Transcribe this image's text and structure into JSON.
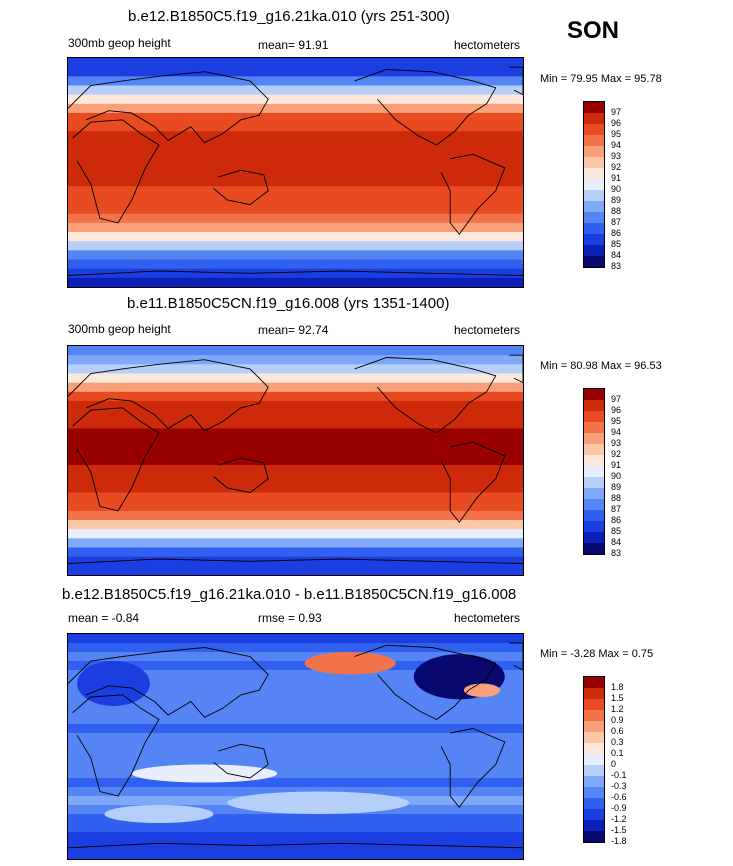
{
  "season": "SON",
  "panels": [
    {
      "title": "b.e12.B1850C5.f19_g16.21ka.010 (yrs 251-300)",
      "variable": "300mb geop height",
      "stat_text": "mean=  91.91",
      "units": "hectometers",
      "minmax": "Min =  79.95 Max =  95.78",
      "colorbar_labels": [
        "97",
        "96",
        "95",
        "94",
        "93",
        "92",
        "91",
        "90",
        "89",
        "88",
        "87",
        "86",
        "85",
        "84",
        "83"
      ]
    },
    {
      "title": "b.e11.B1850C5CN.f19_g16.008 (yrs 1351-1400)",
      "variable": "300mb geop height",
      "stat_text": "mean=  92.74",
      "units": "hectometers",
      "minmax": "Min =  80.98 Max =  96.53",
      "colorbar_labels": [
        "97",
        "96",
        "95",
        "94",
        "93",
        "92",
        "91",
        "90",
        "89",
        "88",
        "87",
        "86",
        "85",
        "84",
        "83"
      ]
    },
    {
      "title": "b.e12.B1850C5.f19_g16.21ka.010 - b.e11.B1850C5CN.f19_g16.008",
      "stat_text": "mean =  -0.84",
      "stat2_text": "rmse =   0.93",
      "units": "hectometers",
      "minmax": "Min =  -3.28 Max =   0.75",
      "colorbar_labels": [
        "1.8",
        "1.5",
        "1.2",
        "0.9",
        "0.6",
        "0.3",
        "0.1",
        "0",
        "-0.1",
        "-0.3",
        "-0.6",
        "-0.9",
        "-1.2",
        "-1.5",
        "-1.8"
      ]
    }
  ],
  "chart_data": [
    {
      "type": "heatmap",
      "title": "b.e12.B1850C5.f19_g16.21ka.010 (yrs 251-300)",
      "variable": "300mb geop height",
      "units": "hectometers",
      "mean": 91.91,
      "min": 79.95,
      "max": 95.78,
      "levels": [
        83,
        84,
        85,
        86,
        87,
        88,
        89,
        90,
        91,
        92,
        93,
        94,
        95,
        96,
        97
      ],
      "colors": [
        "#08086e",
        "#0a1fb4",
        "#1a3ee0",
        "#3060f0",
        "#5585f4",
        "#80a8f8",
        "#b5cff9",
        "#e8eefc",
        "#fde9dc",
        "#fcc6a8",
        "#f9a07a",
        "#f2724a",
        "#e84a22",
        "#cc2a0a",
        "#990000"
      ],
      "zonal_profile_lat_from_north": [
        84,
        84.5,
        86,
        88,
        90,
        92.5,
        94,
        94.6,
        95,
        95.2,
        95.3,
        95.3,
        95.2,
        95.1,
        94.7,
        94.3,
        94,
        93.5,
        92.5,
        90.5,
        88.5,
        86.5,
        85,
        84,
        83.5
      ]
    },
    {
      "type": "heatmap",
      "title": "b.e11.B1850C5CN.f19_g16.008 (yrs 1351-1400)",
      "variable": "300mb geop height",
      "units": "hectometers",
      "mean": 92.74,
      "min": 80.98,
      "max": 96.53,
      "levels": [
        83,
        84,
        85,
        86,
        87,
        88,
        89,
        90,
        91,
        92,
        93,
        94,
        95,
        96,
        97
      ],
      "colors": [
        "#08086e",
        "#0a1fb4",
        "#1a3ee0",
        "#3060f0",
        "#5585f4",
        "#80a8f8",
        "#b5cff9",
        "#e8eefc",
        "#fde9dc",
        "#fcc6a8",
        "#f9a07a",
        "#f2724a",
        "#e84a22",
        "#cc2a0a",
        "#990000"
      ],
      "zonal_profile_lat_from_north": [
        86,
        87,
        88.5,
        90.5,
        92.5,
        94,
        95,
        95.5,
        95.8,
        96,
        96.1,
        96.1,
        96,
        95.9,
        95.6,
        95.2,
        94.8,
        94.2,
        93.2,
        91.5,
        89.5,
        87.5,
        85.5,
        84.5,
        84
      ]
    },
    {
      "type": "heatmap",
      "title": "b.e12.B1850C5.f19_g16.21ka.010 - b.e11.B1850C5CN.f19_g16.008",
      "units": "hectometers",
      "mean": -0.84,
      "rmse": 0.93,
      "min": -3.28,
      "max": 0.75,
      "levels": [
        -1.8,
        -1.5,
        -1.2,
        -0.9,
        -0.6,
        -0.3,
        -0.1,
        0,
        0.1,
        0.3,
        0.6,
        0.9,
        1.2,
        1.5,
        1.8
      ],
      "colors": [
        "#08086e",
        "#0a1fb4",
        "#1a3ee0",
        "#3060f0",
        "#5585f4",
        "#80a8f8",
        "#b5cff9",
        "#e8eefc",
        "#fde9dc",
        "#fcc6a8",
        "#f9a07a",
        "#f2724a",
        "#e84a22",
        "#cc2a0a",
        "#990000"
      ],
      "zonal_profile_lat_from_north": [
        -1.3,
        -1.0,
        -0.8,
        -1.0,
        -0.9,
        -0.8,
        -0.7,
        -0.7,
        -0.8,
        -0.9,
        -1.0,
        -0.9,
        -0.8,
        -0.7,
        -0.8,
        -0.9,
        -1.0,
        -0.7,
        -0.5,
        -0.9,
        -1.1,
        -1.2,
        -1.3,
        -1.4,
        -1.5
      ]
    }
  ]
}
